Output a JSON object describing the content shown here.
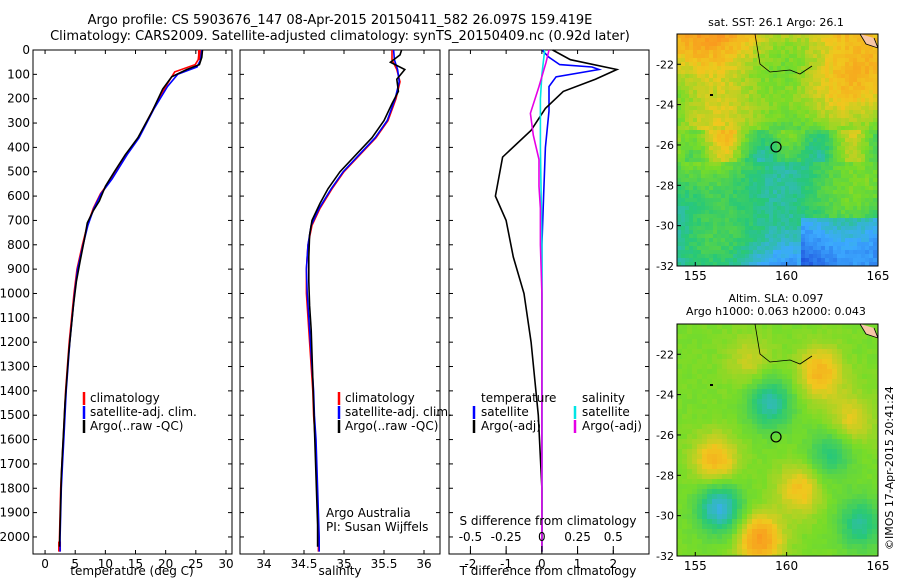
{
  "title_line1": "Argo profile: CS 5903676_147 08-Apr-2015 20150411_582 26.097S 159.419E",
  "title_line2": "Climatology: CARS2009. Satellite-adjusted climatology: synTS_20150409.nc (0.92d later)",
  "sst_title": "sat. SST: 26.1  Argo: 26.1",
  "sla_title1": "Altim. SLA: 0.097",
  "sla_title2": "Argo h1000: 0.063 h2000: 0.043",
  "credit": "©IMOS 17-Apr-2015 20:41:24",
  "argo_note1": "Argo Australia",
  "argo_note2": "PI: Susan Wijffels",
  "colors": {
    "climatology": "#ff0000",
    "satellite": "#0000ff",
    "argo": "#000000",
    "s_satellite": "#00e5e5",
    "s_argo": "#e600e6"
  },
  "chart_data": [
    {
      "type": "line",
      "xlabel": "temperature (deg C)",
      "ylabel": "",
      "xlim": [
        -2,
        31
      ],
      "ylim": [
        2070,
        0
      ],
      "xticks": [
        0,
        5,
        10,
        15,
        20,
        25,
        30
      ],
      "yticks": [
        0,
        100,
        200,
        300,
        400,
        500,
        600,
        700,
        800,
        900,
        1000,
        1100,
        1200,
        1300,
        1400,
        1500,
        1600,
        1700,
        1800,
        1900,
        2000
      ],
      "legend": [
        "climatology",
        "satellite-adj. clim.",
        "Argo(..raw -QC)"
      ],
      "series": [
        {
          "name": "climatology",
          "color": "climatology",
          "points": [
            [
              25.6,
              0
            ],
            [
              25.4,
              40
            ],
            [
              24.9,
              60
            ],
            [
              21.5,
              90
            ],
            [
              20.0,
              150
            ],
            [
              18.0,
              240
            ],
            [
              15.5,
              360
            ],
            [
              13.5,
              430
            ],
            [
              11.0,
              530
            ],
            [
              9.2,
              590
            ],
            [
              8.0,
              650
            ],
            [
              7.0,
              720
            ],
            [
              6.2,
              800
            ],
            [
              5.3,
              900
            ],
            [
              4.8,
              1000
            ],
            [
              4.4,
              1100
            ],
            [
              4.0,
              1200
            ],
            [
              3.7,
              1300
            ],
            [
              3.4,
              1400
            ],
            [
              3.2,
              1500
            ],
            [
              3.0,
              1600
            ],
            [
              2.8,
              1700
            ],
            [
              2.6,
              1800
            ],
            [
              2.5,
              1900
            ],
            [
              2.4,
              2000
            ],
            [
              2.4,
              2060
            ]
          ]
        },
        {
          "name": "satellite-adj. clim.",
          "color": "satellite",
          "points": [
            [
              26.0,
              0
            ],
            [
              25.8,
              40
            ],
            [
              25.2,
              70
            ],
            [
              22.0,
              100
            ],
            [
              20.3,
              150
            ],
            [
              18.1,
              240
            ],
            [
              15.6,
              360
            ],
            [
              13.6,
              430
            ],
            [
              11.1,
              530
            ],
            [
              9.3,
              590
            ],
            [
              8.1,
              650
            ],
            [
              7.1,
              720
            ],
            [
              6.3,
              800
            ],
            [
              5.4,
              900
            ],
            [
              4.9,
              1000
            ],
            [
              4.5,
              1100
            ],
            [
              4.1,
              1200
            ],
            [
              3.8,
              1300
            ],
            [
              3.5,
              1400
            ],
            [
              3.3,
              1500
            ],
            [
              3.1,
              1600
            ],
            [
              2.9,
              1700
            ],
            [
              2.7,
              1800
            ],
            [
              2.6,
              1900
            ],
            [
              2.5,
              2000
            ],
            [
              2.5,
              2060
            ]
          ]
        },
        {
          "name": "Argo(..raw -QC)",
          "color": "argo",
          "points": [
            [
              26.1,
              0
            ],
            [
              26.0,
              30
            ],
            [
              25.6,
              60
            ],
            [
              23.5,
              80
            ],
            [
              21.0,
              110
            ],
            [
              19.5,
              160
            ],
            [
              17.8,
              250
            ],
            [
              15.4,
              360
            ],
            [
              13.3,
              430
            ],
            [
              11.5,
              500
            ],
            [
              10.0,
              560
            ],
            [
              9.0,
              620
            ],
            [
              8.0,
              660
            ],
            [
              7.0,
              710
            ],
            [
              6.5,
              780
            ],
            [
              5.8,
              870
            ],
            [
              5.2,
              950
            ],
            [
              4.7,
              1050
            ],
            [
              4.3,
              1150
            ],
            [
              3.9,
              1250
            ],
            [
              3.6,
              1350
            ],
            [
              3.3,
              1450
            ],
            [
              3.1,
              1550
            ],
            [
              2.9,
              1650
            ],
            [
              2.7,
              1750
            ],
            [
              2.6,
              1850
            ],
            [
              2.5,
              1950
            ],
            [
              2.4,
              2040
            ]
          ]
        }
      ]
    },
    {
      "type": "line",
      "xlabel": "salinity",
      "xlim": [
        33.7,
        36.2
      ],
      "ylim": [
        2070,
        0
      ],
      "xticks": [
        34,
        34.5,
        35,
        35.5,
        36
      ],
      "xticklabels": [
        "34",
        "34.5",
        "35",
        "35.5",
        "36"
      ],
      "legend": [
        "climatology",
        "satellite-adj. clim.",
        "Argo(..raw -QC)"
      ],
      "series": [
        {
          "name": "climatology",
          "color": "climatology",
          "points": [
            [
              35.6,
              0
            ],
            [
              35.6,
              40
            ],
            [
              35.66,
              80
            ],
            [
              35.7,
              130
            ],
            [
              35.65,
              200
            ],
            [
              35.55,
              290
            ],
            [
              35.4,
              360
            ],
            [
              35.2,
              430
            ],
            [
              35.0,
              500
            ],
            [
              34.85,
              570
            ],
            [
              34.7,
              650
            ],
            [
              34.6,
              720
            ],
            [
              34.55,
              800
            ],
            [
              34.53,
              900
            ],
            [
              34.53,
              1000
            ],
            [
              34.55,
              1100
            ],
            [
              34.57,
              1200
            ],
            [
              34.59,
              1300
            ],
            [
              34.61,
              1400
            ],
            [
              34.62,
              1500
            ],
            [
              34.64,
              1600
            ],
            [
              34.65,
              1700
            ],
            [
              34.66,
              1800
            ],
            [
              34.67,
              1900
            ],
            [
              34.68,
              2000
            ],
            [
              34.68,
              2060
            ]
          ]
        },
        {
          "name": "satellite-adj. clim.",
          "color": "satellite",
          "points": [
            [
              35.62,
              0
            ],
            [
              35.63,
              40
            ],
            [
              35.67,
              80
            ],
            [
              35.69,
              130
            ],
            [
              35.64,
              200
            ],
            [
              35.54,
              290
            ],
            [
              35.39,
              360
            ],
            [
              35.19,
              430
            ],
            [
              34.99,
              500
            ],
            [
              34.84,
              570
            ],
            [
              34.69,
              650
            ],
            [
              34.59,
              720
            ],
            [
              34.55,
              800
            ],
            [
              34.53,
              900
            ],
            [
              34.54,
              1000
            ],
            [
              34.56,
              1100
            ],
            [
              34.58,
              1200
            ],
            [
              34.6,
              1300
            ],
            [
              34.62,
              1400
            ],
            [
              34.63,
              1500
            ],
            [
              34.65,
              1600
            ],
            [
              34.66,
              1700
            ],
            [
              34.67,
              1800
            ],
            [
              34.68,
              1900
            ],
            [
              34.69,
              2000
            ],
            [
              34.69,
              2060
            ]
          ]
        },
        {
          "name": "Argo(..raw -QC)",
          "color": "argo",
          "points": [
            [
              35.72,
              0
            ],
            [
              35.7,
              20
            ],
            [
              35.58,
              50
            ],
            [
              35.76,
              80
            ],
            [
              35.66,
              120
            ],
            [
              35.68,
              170
            ],
            [
              35.6,
              220
            ],
            [
              35.5,
              290
            ],
            [
              35.35,
              360
            ],
            [
              35.15,
              430
            ],
            [
              34.95,
              500
            ],
            [
              34.8,
              570
            ],
            [
              34.7,
              630
            ],
            [
              34.6,
              700
            ],
            [
              34.57,
              760
            ],
            [
              34.56,
              850
            ],
            [
              34.56,
              950
            ],
            [
              34.57,
              1050
            ],
            [
              34.59,
              1150
            ],
            [
              34.6,
              1250
            ],
            [
              34.61,
              1350
            ],
            [
              34.62,
              1450
            ],
            [
              34.63,
              1550
            ],
            [
              34.64,
              1650
            ],
            [
              34.65,
              1750
            ],
            [
              34.66,
              1850
            ],
            [
              34.67,
              1950
            ],
            [
              34.67,
              2040
            ]
          ]
        }
      ]
    },
    {
      "type": "line",
      "xlabel": "T difference from climatology",
      "top_axis_label": "S difference from climatology",
      "xlim": [
        -2.6,
        3.0
      ],
      "ylim": [
        2070,
        0
      ],
      "xticks": [
        -2,
        -1,
        0,
        1,
        2
      ],
      "top_xlim": [
        -0.65,
        0.75
      ],
      "top_xticks": [
        -0.5,
        -0.25,
        0,
        0.25,
        0.5
      ],
      "top_xticklabels": [
        "-0.5",
        "-0.25",
        "0",
        "0.25",
        "0.5"
      ],
      "legend_t": [
        "temperature",
        "satellite",
        "Argo(-adj)"
      ],
      "legend_s": [
        "salinity",
        "satellite",
        "Argo(-adj)"
      ],
      "series": [
        {
          "name": "satellite",
          "color": "satellite",
          "axis": "T",
          "points": [
            [
              0.0,
              0
            ],
            [
              0.2,
              30
            ],
            [
              0.5,
              60
            ],
            [
              1.4,
              70
            ],
            [
              1.6,
              80
            ],
            [
              0.4,
              110
            ],
            [
              0.2,
              150
            ],
            [
              0.2,
              250
            ],
            [
              0.1,
              400
            ],
            [
              0.05,
              600
            ],
            [
              0.0,
              800
            ],
            [
              0.0,
              1000
            ],
            [
              0.0,
              1500
            ],
            [
              0.0,
              2060
            ]
          ]
        },
        {
          "name": "Argo(-adj)",
          "color": "argo",
          "axis": "T",
          "points": [
            [
              0.3,
              0
            ],
            [
              0.8,
              40
            ],
            [
              2.1,
              80
            ],
            [
              1.5,
              120
            ],
            [
              0.6,
              170
            ],
            [
              0.1,
              240
            ],
            [
              -0.3,
              330
            ],
            [
              -1.1,
              440
            ],
            [
              -1.2,
              520
            ],
            [
              -1.3,
              600
            ],
            [
              -1.0,
              700
            ],
            [
              -0.8,
              850
            ],
            [
              -0.5,
              1000
            ],
            [
              -0.3,
              1200
            ],
            [
              -0.1,
              1500
            ],
            [
              0.0,
              1800
            ],
            [
              0.0,
              2060
            ]
          ]
        },
        {
          "name": "satellite",
          "color": "s_satellite",
          "axis": "S",
          "points": [
            [
              0.02,
              0
            ],
            [
              0.01,
              50
            ],
            [
              0.0,
              100
            ],
            [
              -0.01,
              200
            ],
            [
              -0.01,
              400
            ],
            [
              0.0,
              800
            ],
            [
              0.0,
              1200
            ],
            [
              0.0,
              2060
            ]
          ]
        },
        {
          "name": "Argo(-adj)",
          "color": "s_argo",
          "axis": "S",
          "points": [
            [
              0.05,
              0
            ],
            [
              0.03,
              50
            ],
            [
              -0.02,
              150
            ],
            [
              -0.08,
              260
            ],
            [
              -0.06,
              350
            ],
            [
              -0.02,
              450
            ],
            [
              -0.02,
              560
            ],
            [
              -0.01,
              650
            ],
            [
              -0.01,
              800
            ],
            [
              0.0,
              1000
            ],
            [
              0.0,
              1500
            ],
            [
              0.0,
              2060
            ]
          ]
        }
      ]
    }
  ],
  "maps": [
    {
      "kind": "sst",
      "xticks": [
        155,
        160,
        165
      ],
      "yticks": [
        -22,
        -24,
        -26,
        -28,
        -30,
        -32
      ],
      "lon": [
        154,
        165
      ],
      "lat": [
        -32,
        -20.5
      ],
      "marker": [
        159.419,
        -26.097
      ]
    },
    {
      "kind": "sla",
      "xticks": [
        155,
        160,
        165
      ],
      "yticks": [
        -22,
        -24,
        -26,
        -28,
        -30,
        -32
      ],
      "lon": [
        154,
        165
      ],
      "lat": [
        -32,
        -20.5
      ],
      "marker": [
        159.419,
        -26.097
      ]
    }
  ]
}
